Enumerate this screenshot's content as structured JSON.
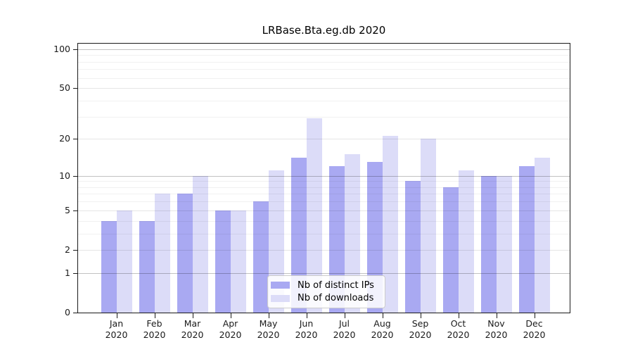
{
  "chart_data": {
    "type": "bar",
    "title": "LRBase.Bta.eg.db 2020",
    "categories": [
      "Jan 2020",
      "Feb 2020",
      "Mar 2020",
      "Apr 2020",
      "May 2020",
      "Jun 2020",
      "Jul 2020",
      "Aug 2020",
      "Sep 2020",
      "Oct 2020",
      "Nov 2020",
      "Dec 2020"
    ],
    "series": [
      {
        "name": "Nb of distinct IPs",
        "color": "#a9a9f2",
        "values": [
          4,
          4,
          7,
          5,
          6,
          14,
          12,
          13,
          9,
          8,
          10,
          12
        ]
      },
      {
        "name": "Nb of downloads",
        "color": "#dcdcf8",
        "values": [
          5,
          7,
          10,
          5,
          11,
          29,
          15,
          21,
          20,
          11,
          10,
          14
        ]
      }
    ],
    "xlabel": "",
    "ylabel": "",
    "yscale": "log1p",
    "yticks": [
      0,
      1,
      2,
      5,
      10,
      20,
      50,
      100
    ],
    "ylim": [
      0,
      110
    ],
    "grid_major_values": [
      1,
      10,
      100
    ],
    "grid_mid_values": [
      2,
      5,
      20,
      50
    ],
    "grid_minor_values": [
      3,
      4,
      6,
      7,
      8,
      9,
      30,
      40,
      60,
      70,
      80,
      90
    ],
    "legend_position": "lower center",
    "legend_entries": [
      "Nb of distinct IPs",
      "Nb of downloads"
    ]
  }
}
